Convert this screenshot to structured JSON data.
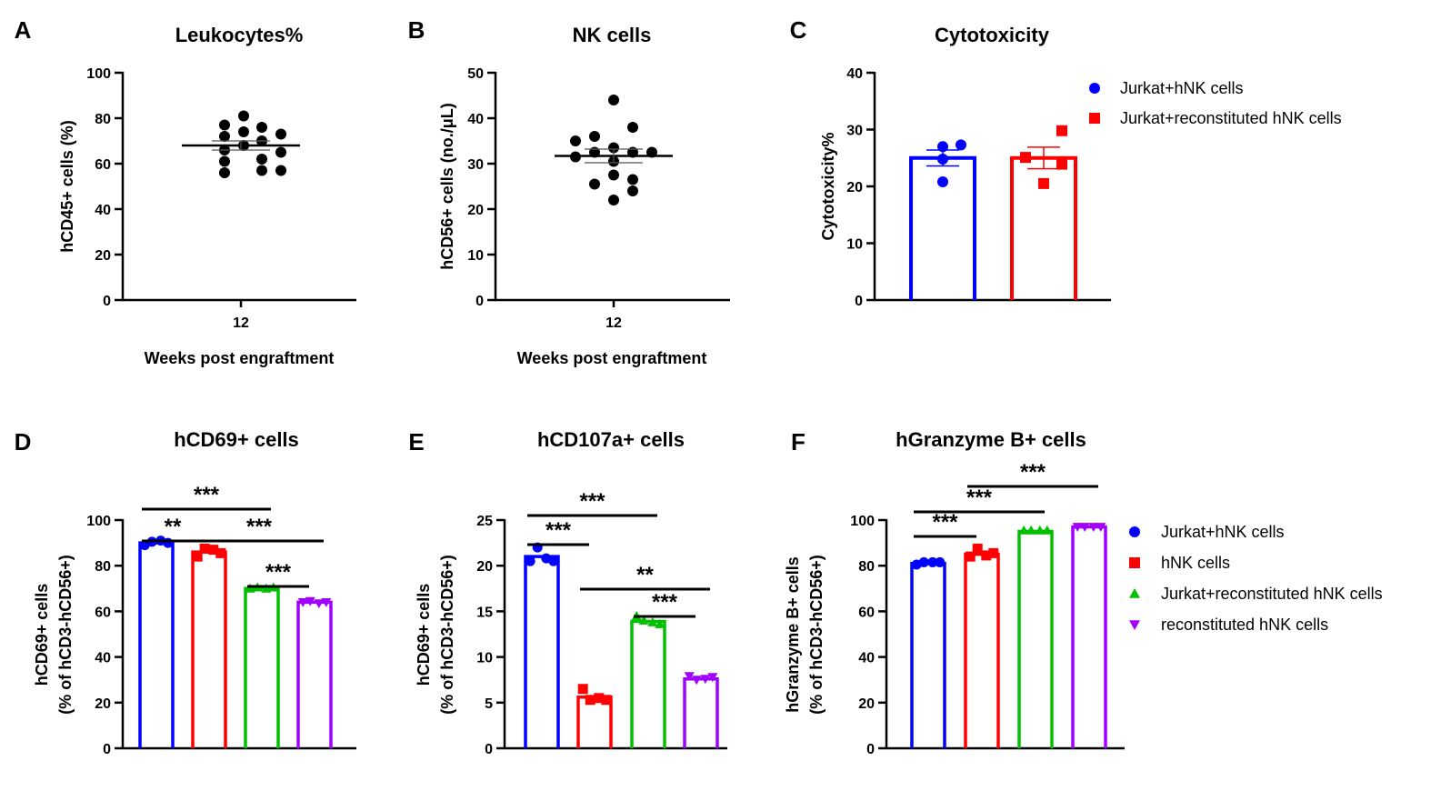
{
  "chart_data": [
    {
      "panel": "A",
      "type": "scatter",
      "title": "Leukocytes%",
      "xlabel": "Weeks post engraftment",
      "ylabel": "hCD45+ cells (%)",
      "categories": [
        "12"
      ],
      "ylim": [
        0,
        100
      ],
      "yticks": [
        0,
        20,
        40,
        60,
        80,
        100
      ],
      "values": [
        77,
        72,
        66,
        61,
        56,
        81,
        74,
        68,
        76,
        70,
        62,
        57,
        73,
        65,
        57
      ],
      "mean": 68,
      "sem": 2
    },
    {
      "panel": "B",
      "type": "scatter",
      "title": "NK cells",
      "xlabel": "Weeks post engraftment",
      "ylabel": "hCD56+ cells (no./μL)",
      "categories": [
        "12"
      ],
      "ylim": [
        0,
        50
      ],
      "yticks": [
        0,
        10,
        20,
        30,
        40,
        50
      ],
      "values": [
        35,
        31.5,
        36,
        32.5,
        25.5,
        44,
        33.5,
        30.5,
        27.5,
        22,
        38,
        32.5,
        26.5,
        24,
        32.5
      ],
      "mean": 31.7,
      "sem": 1.5
    },
    {
      "panel": "C",
      "type": "bar",
      "title": "Cytotoxicity",
      "xlabel": "",
      "ylabel": "Cytotoxicity%",
      "ylim": [
        0,
        40
      ],
      "yticks": [
        0,
        10,
        20,
        30,
        40
      ],
      "legend_position": "top-right",
      "series": [
        {
          "name": "Jurkat+hNK cells",
          "color": "#0000ff",
          "marker": "circle",
          "mean": 25,
          "sem": 1.4,
          "points": [
            27,
            27.3,
            24.8,
            20.8
          ]
        },
        {
          "name": "Jurkat+reconstituted hNK cells",
          "color": "#ff0000",
          "marker": "square",
          "mean": 25,
          "sem": 1.9,
          "points": [
            25.1,
            29.8,
            23.9,
            20.5
          ]
        }
      ]
    },
    {
      "panel": "D",
      "type": "bar",
      "title": "hCD69+ cells",
      "ylabel": [
        "hCD69+ cells",
        "(% of hCD3-hCD56+)"
      ],
      "ylim": [
        0,
        100
      ],
      "yticks": [
        0,
        20,
        40,
        60,
        80,
        100
      ],
      "series": [
        {
          "name": "Jurkat+hNK cells",
          "color": "#0000ff",
          "marker": "circle",
          "mean": 90,
          "points": [
            89,
            90.5,
            91,
            90
          ]
        },
        {
          "name": "hNK cells",
          "color": "#ff0000",
          "marker": "square",
          "mean": 86,
          "points": [
            84,
            87.5,
            87,
            85.5
          ]
        },
        {
          "name": "Jurkat+reconstituted hNK cells",
          "color": "#00c000",
          "marker": "triangle-up",
          "mean": 70,
          "points": [
            70,
            70.5,
            70,
            70.5
          ]
        },
        {
          "name": "reconstituted hNK cells",
          "color": "#a000ff",
          "marker": "triangle-down",
          "mean": 64,
          "points": [
            64,
            64.5,
            63.5,
            64
          ]
        }
      ],
      "significance": [
        {
          "from": 0,
          "to": 2,
          "label": "***"
        },
        {
          "from": 0,
          "to": 1,
          "label": "**"
        },
        {
          "from": 1,
          "to": 3,
          "label": "***"
        },
        {
          "from": 2,
          "to": 3,
          "label": "***"
        }
      ]
    },
    {
      "panel": "E",
      "type": "bar",
      "title": "hCD107a+ cells",
      "ylabel": [
        "hCD69+ cells",
        "(% of hCD3-hCD56+)"
      ],
      "ylim": [
        0,
        25
      ],
      "yticks": [
        0,
        5,
        10,
        15,
        20,
        25
      ],
      "series": [
        {
          "name": "Jurkat+hNK cells",
          "color": "#0000ff",
          "marker": "circle",
          "mean": 21,
          "points": [
            20.5,
            22,
            20.8,
            20.5
          ]
        },
        {
          "name": "hNK cells",
          "color": "#ff0000",
          "marker": "square",
          "mean": 5.6,
          "points": [
            6.5,
            5.3,
            5.5,
            5.3
          ]
        },
        {
          "name": "Jurkat+reconstituted hNK cells",
          "color": "#00c000",
          "marker": "triangle-up",
          "mean": 13.9,
          "points": [
            14.5,
            14.0,
            13.8,
            13.6
          ]
        },
        {
          "name": "reconstituted hNK cells",
          "color": "#a000ff",
          "marker": "triangle-down",
          "mean": 7.6,
          "points": [
            7.9,
            7.5,
            7.6,
            7.8
          ]
        }
      ],
      "significance": [
        {
          "from": 0,
          "to": 2,
          "label": "***"
        },
        {
          "from": 0,
          "to": 1,
          "label": "***"
        },
        {
          "from": 1,
          "to": 3,
          "label": "**"
        },
        {
          "from": 2,
          "to": 3,
          "label": "***"
        }
      ]
    },
    {
      "panel": "F",
      "type": "bar",
      "title": "hGranzyme B+ cells",
      "ylabel": [
        "hGranzyme B+ cells",
        "(% of hCD3-hCD56+)"
      ],
      "ylim": [
        0,
        100
      ],
      "yticks": [
        0,
        20,
        40,
        60,
        80,
        100
      ],
      "legend_position": "right",
      "series": [
        {
          "name": "Jurkat+hNK cells",
          "color": "#0000ff",
          "marker": "circle",
          "mean": 81,
          "points": [
            80.5,
            81.5,
            81.5,
            81.5
          ]
        },
        {
          "name": "hNK cells",
          "color": "#ff0000",
          "marker": "square",
          "mean": 85,
          "points": [
            84,
            87.5,
            84.5,
            85.5
          ]
        },
        {
          "name": "Jurkat+reconstituted hNK cells",
          "color": "#00c000",
          "marker": "triangle-up",
          "mean": 95,
          "points": [
            95.5,
            95.5,
            95.5,
            95.5
          ]
        },
        {
          "name": "reconstituted hNK cells",
          "color": "#a000ff",
          "marker": "triangle-down",
          "mean": 97,
          "points": [
            97,
            97,
            97,
            97
          ]
        }
      ],
      "significance": [
        {
          "from": 1,
          "to": 3,
          "label": "***"
        },
        {
          "from": 0,
          "to": 2,
          "label": "***"
        },
        {
          "from": 0,
          "to": 1,
          "label": "***"
        }
      ]
    }
  ]
}
